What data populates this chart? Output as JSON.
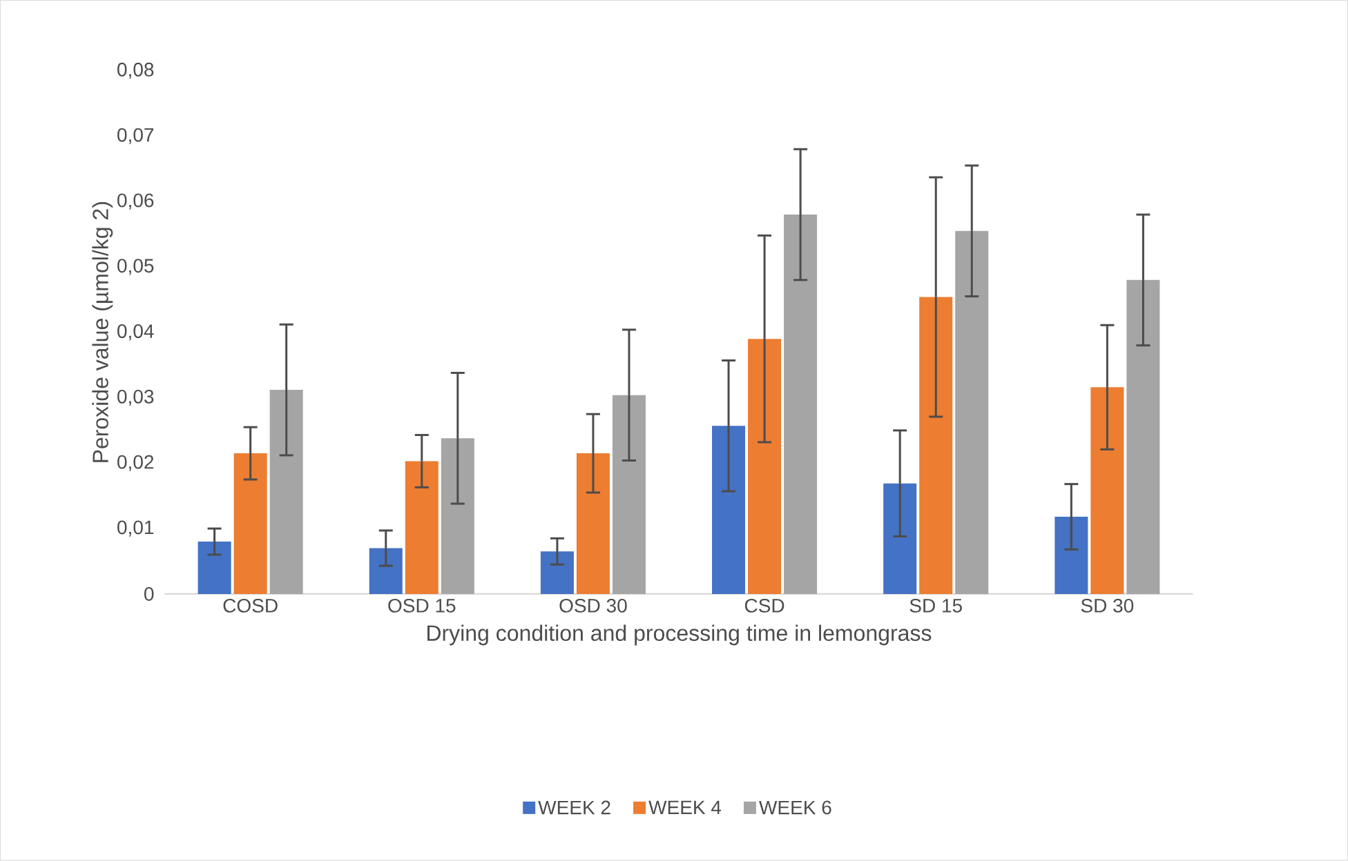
{
  "chart_data": {
    "type": "bar",
    "xlabel": "Drying condition and processing time in lemongrass",
    "ylabel": "Peroxide value (µmol/kg 2)",
    "categories": [
      "COSD",
      "OSD 15",
      "OSD 30",
      "CSD",
      "SD 15",
      "SD 30"
    ],
    "series": [
      {
        "name": "WEEK 2",
        "color": "#4472c4",
        "values": [
          0.008,
          0.007,
          0.0065,
          0.0257,
          0.0169,
          0.0118
        ],
        "errors": [
          0.002,
          0.0027,
          0.002,
          0.01,
          0.0081,
          0.005
        ]
      },
      {
        "name": "WEEK 4",
        "color": "#ed7d31",
        "values": [
          0.0215,
          0.0203,
          0.0215,
          0.039,
          0.0454,
          0.0316
        ],
        "errors": [
          0.004,
          0.004,
          0.006,
          0.0158,
          0.0183,
          0.0095
        ]
      },
      {
        "name": "WEEK 6",
        "color": "#a5a5a5",
        "values": [
          0.0312,
          0.0238,
          0.0304,
          0.058,
          0.0555,
          0.048
        ],
        "errors": [
          0.01,
          0.01,
          0.01,
          0.01,
          0.01,
          0.01
        ]
      }
    ],
    "ylim": [
      0,
      0.08
    ],
    "yticks": [
      0,
      {
        "value": 0.01,
        "label": "0,01"
      },
      {
        "value": 0.02,
        "label": "0,02"
      },
      {
        "value": 0.03,
        "label": "0,03"
      },
      {
        "value": 0.04,
        "label": "0,04"
      },
      {
        "value": 0.05,
        "label": "0,05"
      },
      {
        "value": 0.06,
        "label": "0,06"
      },
      {
        "value": 0.07,
        "label": "0,07"
      },
      {
        "value": 0.08,
        "label": "0,08"
      }
    ],
    "grid": false,
    "legend": "bottom"
  }
}
